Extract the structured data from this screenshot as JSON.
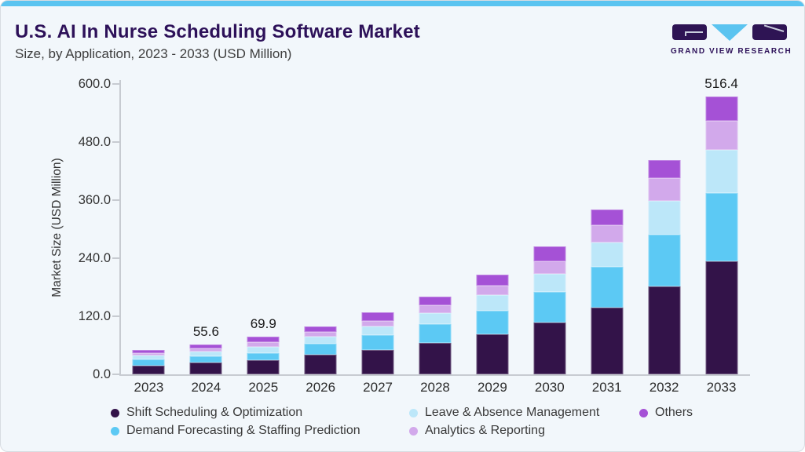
{
  "header": {
    "title": "U.S. AI In Nurse Scheduling Software Market",
    "subtitle": "Size, by Application, 2023 - 2033 (USD Million)",
    "logo_text": "GRAND VIEW RESEARCH"
  },
  "colors": {
    "accent_bar": "#5BC4F0",
    "card_background": "#F2F7FB",
    "title_text": "#2D1159",
    "axis_line": "#C7CBD1",
    "axis_text": "#333333"
  },
  "chart_data": {
    "type": "bar",
    "stacked": true,
    "title": "U.S. AI In Nurse Scheduling Software Market Size, by Application, 2023 - 2033 (USD Million)",
    "xlabel": "",
    "ylabel": "Market Size (USD Million)",
    "ylim": [
      0,
      600
    ],
    "ytick_labels": [
      "0.0",
      "120.0",
      "240.0",
      "360.0",
      "480.0",
      "600.0"
    ],
    "grid": false,
    "legend_position": "bottom",
    "categories": [
      "2023",
      "2024",
      "2025",
      "2026",
      "2027",
      "2028",
      "2029",
      "2030",
      "2031",
      "2032",
      "2033"
    ],
    "series": [
      {
        "name": "Shift Scheduling & Optimization",
        "color": "#331349",
        "values": [
          16.2,
          21.2,
          25.8,
          36.0,
          45.9,
          58.8,
          75.0,
          96.6,
          124.6,
          163.2,
          210.0
        ]
      },
      {
        "name": "Demand Forecasting & Staffing Prediction",
        "color": "#5CC9F4",
        "values": [
          10.9,
          12.7,
          13.7,
          21.1,
          27.5,
          34.4,
          43.7,
          56.3,
          75.0,
          96.6,
          127.0
        ]
      },
      {
        "name": "Leave & Absence Management",
        "color": "#BCE7F9",
        "values": [
          7.4,
          8.8,
          11.8,
          12.2,
          15.6,
          21.0,
          28.4,
          34.3,
          45.1,
          62.2,
          79.4
        ]
      },
      {
        "name": "Analytics & Reporting",
        "color": "#D2A9EB",
        "values": [
          4.9,
          5.5,
          8.0,
          8.8,
          10.9,
          14.3,
          18.2,
          23.5,
          32.4,
          41.8,
          55.0
        ]
      },
      {
        "name": "Others",
        "color": "#A551D6",
        "values": [
          5.9,
          7.4,
          10.6,
          10.7,
          14.7,
          15.6,
          20.0,
          26.5,
          28.8,
          34.7,
          45.0
        ]
      }
    ],
    "totals": [
      45.3,
      55.6,
      69.9,
      88.8,
      114.6,
      144.1,
      185.3,
      237.2,
      305.9,
      398.5,
      516.4
    ],
    "value_labels": [
      "",
      "55.6",
      "69.9",
      "",
      "",
      "",
      "",
      "",
      "",
      "",
      "516.4"
    ],
    "legend_display_order": [
      0,
      2,
      4,
      1,
      3
    ]
  }
}
